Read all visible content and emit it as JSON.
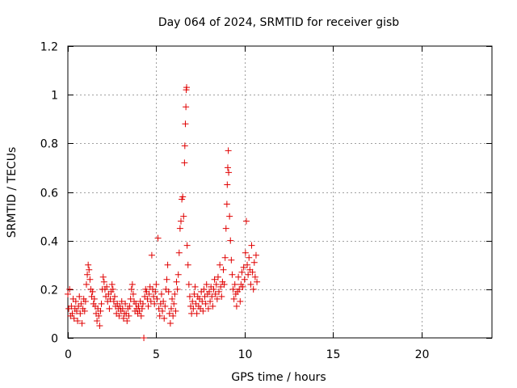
{
  "chart_data": {
    "type": "scatter",
    "title": "Day 064 of 2024, SRMTID for receiver gisb",
    "xlabel": "GPS time / hours",
    "ylabel": "SRMTID / TECUs",
    "xlim": [
      0,
      24
    ],
    "ylim": [
      0,
      1.2
    ],
    "xticks": [
      0,
      5,
      10,
      15,
      20
    ],
    "yticks": [
      0,
      0.2,
      0.4,
      0.6,
      0.8,
      1,
      1.2
    ],
    "ytick_labels": [
      "0",
      "0.2",
      "0.4",
      "0.6",
      "0.8",
      "1",
      "1.2"
    ],
    "xtick_labels": [
      "0",
      "5",
      "10",
      "15",
      "20"
    ],
    "grid": true,
    "marker": "+",
    "color": "#e00000",
    "series": [
      {
        "name": "gisb",
        "points": [
          [
            0.0,
            0.18
          ],
          [
            0.05,
            0.12
          ],
          [
            0.1,
            0.2
          ],
          [
            0.15,
            0.09
          ],
          [
            0.2,
            0.13
          ],
          [
            0.25,
            0.1
          ],
          [
            0.3,
            0.16
          ],
          [
            0.35,
            0.08
          ],
          [
            0.4,
            0.12
          ],
          [
            0.45,
            0.15
          ],
          [
            0.5,
            0.11
          ],
          [
            0.55,
            0.07
          ],
          [
            0.6,
            0.13
          ],
          [
            0.65,
            0.17
          ],
          [
            0.7,
            0.1
          ],
          [
            0.75,
            0.14
          ],
          [
            0.8,
            0.06
          ],
          [
            0.85,
            0.12
          ],
          [
            0.9,
            0.16
          ],
          [
            0.95,
            0.11
          ],
          [
            1.0,
            0.15
          ],
          [
            1.05,
            0.22
          ],
          [
            1.1,
            0.26
          ],
          [
            1.15,
            0.3
          ],
          [
            1.2,
            0.28
          ],
          [
            1.25,
            0.24
          ],
          [
            1.3,
            0.2
          ],
          [
            1.35,
            0.17
          ],
          [
            1.4,
            0.19
          ],
          [
            1.45,
            0.14
          ],
          [
            1.5,
            0.16
          ],
          [
            1.55,
            0.13
          ],
          [
            1.6,
            0.1
          ],
          [
            1.65,
            0.07
          ],
          [
            1.7,
            0.12
          ],
          [
            1.75,
            0.09
          ],
          [
            1.8,
            0.05
          ],
          [
            1.85,
            0.11
          ],
          [
            1.9,
            0.14
          ],
          [
            1.95,
            0.2
          ],
          [
            2.0,
            0.25
          ],
          [
            2.05,
            0.23
          ],
          [
            2.1,
            0.2
          ],
          [
            2.15,
            0.17
          ],
          [
            2.2,
            0.21
          ],
          [
            2.25,
            0.15
          ],
          [
            2.3,
            0.18
          ],
          [
            2.35,
            0.12
          ],
          [
            2.4,
            0.16
          ],
          [
            2.45,
            0.19
          ],
          [
            2.5,
            0.22
          ],
          [
            2.55,
            0.2
          ],
          [
            2.6,
            0.15
          ],
          [
            2.65,
            0.17
          ],
          [
            2.7,
            0.13
          ],
          [
            2.75,
            0.1
          ],
          [
            2.8,
            0.14
          ],
          [
            2.85,
            0.12
          ],
          [
            2.9,
            0.09
          ],
          [
            2.95,
            0.13
          ],
          [
            3.0,
            0.11
          ],
          [
            3.05,
            0.15
          ],
          [
            3.1,
            0.12
          ],
          [
            3.15,
            0.08
          ],
          [
            3.2,
            0.1
          ],
          [
            3.25,
            0.14
          ],
          [
            3.3,
            0.1
          ],
          [
            3.35,
            0.07
          ],
          [
            3.4,
            0.12
          ],
          [
            3.45,
            0.09
          ],
          [
            3.5,
            0.13
          ],
          [
            3.55,
            0.16
          ],
          [
            3.6,
            0.2
          ],
          [
            3.65,
            0.22
          ],
          [
            3.7,
            0.18
          ],
          [
            3.75,
            0.15
          ],
          [
            3.8,
            0.11
          ],
          [
            3.85,
            0.14
          ],
          [
            3.9,
            0.12
          ],
          [
            3.95,
            0.1
          ],
          [
            4.0,
            0.13
          ],
          [
            4.05,
            0.11
          ],
          [
            4.1,
            0.15
          ],
          [
            4.15,
            0.09
          ],
          [
            4.2,
            0.12
          ],
          [
            4.25,
            0.14
          ],
          [
            4.3,
            0.0
          ],
          [
            4.35,
            0.17
          ],
          [
            4.4,
            0.2
          ],
          [
            4.45,
            0.19
          ],
          [
            4.5,
            0.16
          ],
          [
            4.55,
            0.13
          ],
          [
            4.6,
            0.18
          ],
          [
            4.65,
            0.21
          ],
          [
            4.7,
            0.15
          ],
          [
            4.75,
            0.34
          ],
          [
            4.8,
            0.2
          ],
          [
            4.85,
            0.17
          ],
          [
            4.9,
            0.14
          ],
          [
            4.95,
            0.19
          ],
          [
            5.0,
            0.22
          ],
          [
            5.05,
            0.16
          ],
          [
            5.1,
            0.41
          ],
          [
            5.15,
            0.12
          ],
          [
            5.2,
            0.09
          ],
          [
            5.25,
            0.14
          ],
          [
            5.3,
            0.18
          ],
          [
            5.35,
            0.11
          ],
          [
            5.4,
            0.15
          ],
          [
            5.45,
            0.08
          ],
          [
            5.5,
            0.13
          ],
          [
            5.55,
            0.2
          ],
          [
            5.6,
            0.24
          ],
          [
            5.65,
            0.3
          ],
          [
            5.7,
            0.19
          ],
          [
            5.75,
            0.1
          ],
          [
            5.8,
            0.06
          ],
          [
            5.85,
            0.12
          ],
          [
            5.9,
            0.16
          ],
          [
            5.95,
            0.09
          ],
          [
            6.0,
            0.14
          ],
          [
            6.05,
            0.18
          ],
          [
            6.1,
            0.11
          ],
          [
            6.15,
            0.23
          ],
          [
            6.2,
            0.2
          ],
          [
            6.25,
            0.26
          ],
          [
            6.3,
            0.35
          ],
          [
            6.35,
            0.45
          ],
          [
            6.4,
            0.48
          ],
          [
            6.45,
            0.57
          ],
          [
            6.5,
            0.58
          ],
          [
            6.55,
            0.5
          ],
          [
            6.6,
            0.72
          ],
          [
            6.62,
            0.79
          ],
          [
            6.65,
            0.88
          ],
          [
            6.68,
            0.95
          ],
          [
            6.7,
            1.02
          ],
          [
            6.72,
            1.03
          ],
          [
            6.75,
            0.38
          ],
          [
            6.8,
            0.3
          ],
          [
            6.85,
            0.22
          ],
          [
            6.9,
            0.17
          ],
          [
            6.95,
            0.13
          ],
          [
            7.0,
            0.1
          ],
          [
            7.05,
            0.15
          ],
          [
            7.1,
            0.12
          ],
          [
            7.15,
            0.18
          ],
          [
            7.2,
            0.21
          ],
          [
            7.25,
            0.14
          ],
          [
            7.3,
            0.1
          ],
          [
            7.35,
            0.17
          ],
          [
            7.4,
            0.13
          ],
          [
            7.45,
            0.16
          ],
          [
            7.5,
            0.12
          ],
          [
            7.55,
            0.19
          ],
          [
            7.6,
            0.15
          ],
          [
            7.65,
            0.11
          ],
          [
            7.7,
            0.2
          ],
          [
            7.75,
            0.17
          ],
          [
            7.8,
            0.14
          ],
          [
            7.85,
            0.22
          ],
          [
            7.9,
            0.18
          ],
          [
            7.95,
            0.12
          ],
          [
            8.0,
            0.19
          ],
          [
            8.05,
            0.15
          ],
          [
            8.1,
            0.21
          ],
          [
            8.15,
            0.17
          ],
          [
            8.2,
            0.13
          ],
          [
            8.25,
            0.2
          ],
          [
            8.3,
            0.24
          ],
          [
            8.35,
            0.18
          ],
          [
            8.4,
            0.22
          ],
          [
            8.45,
            0.16
          ],
          [
            8.5,
            0.25
          ],
          [
            8.55,
            0.19
          ],
          [
            8.6,
            0.3
          ],
          [
            8.65,
            0.21
          ],
          [
            8.7,
            0.17
          ],
          [
            8.75,
            0.23
          ],
          [
            8.8,
            0.28
          ],
          [
            8.85,
            0.22
          ],
          [
            8.9,
            0.33
          ],
          [
            8.95,
            0.45
          ],
          [
            9.0,
            0.55
          ],
          [
            9.02,
            0.63
          ],
          [
            9.05,
            0.7
          ],
          [
            9.08,
            0.77
          ],
          [
            9.1,
            0.68
          ],
          [
            9.15,
            0.5
          ],
          [
            9.2,
            0.4
          ],
          [
            9.25,
            0.32
          ],
          [
            9.3,
            0.26
          ],
          [
            9.35,
            0.2
          ],
          [
            9.4,
            0.16
          ],
          [
            9.45,
            0.22
          ],
          [
            9.5,
            0.18
          ],
          [
            9.55,
            0.13
          ],
          [
            9.6,
            0.19
          ],
          [
            9.65,
            0.25
          ],
          [
            9.7,
            0.2
          ],
          [
            9.75,
            0.15
          ],
          [
            9.8,
            0.22
          ],
          [
            9.85,
            0.27
          ],
          [
            9.9,
            0.21
          ],
          [
            9.95,
            0.29
          ],
          [
            10.0,
            0.24
          ],
          [
            10.05,
            0.35
          ],
          [
            10.1,
            0.48
          ],
          [
            10.15,
            0.3
          ],
          [
            10.2,
            0.26
          ],
          [
            10.25,
            0.33
          ],
          [
            10.3,
            0.28
          ],
          [
            10.35,
            0.22
          ],
          [
            10.4,
            0.38
          ],
          [
            10.45,
            0.27
          ],
          [
            10.5,
            0.2
          ],
          [
            10.55,
            0.31
          ],
          [
            10.6,
            0.25
          ],
          [
            10.65,
            0.34
          ],
          [
            10.7,
            0.23
          ]
        ]
      }
    ]
  }
}
